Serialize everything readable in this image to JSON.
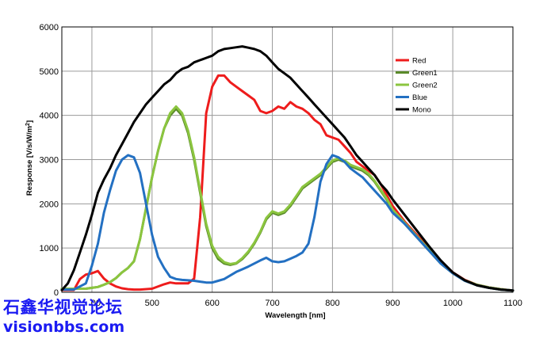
{
  "chart_data": {
    "type": "line",
    "title": "",
    "xlabel": "Wavelength [nm]",
    "ylabel": "Response [V/s/W/m",
    "ylabel_superscript": "2",
    "ylabel_close": "]",
    "xlim": [
      350,
      1100
    ],
    "ylim": [
      0,
      6000
    ],
    "x_ticks": [
      500,
      600,
      700,
      800,
      900,
      1000,
      1100
    ],
    "x_tick_labels": [
      "500",
      "600",
      "700",
      "800",
      "900",
      "1000",
      "1100"
    ],
    "x_tick_labels_partial": [
      {
        "x": 400,
        "text": "00"
      }
    ],
    "y_ticks": [
      0,
      1000,
      2000,
      3000,
      4000,
      5000,
      6000
    ],
    "y_tick_labels": [
      "0",
      "1000",
      "2000",
      "3000",
      "4000",
      "5000",
      "6000"
    ],
    "grid": true,
    "legend_position": "top-right",
    "series": [
      {
        "name": "Red",
        "color": "#ee1c1c",
        "x": [
          350,
          370,
          380,
          390,
          400,
          410,
          420,
          430,
          440,
          450,
          460,
          470,
          480,
          500,
          520,
          530,
          540,
          550,
          560,
          570,
          575,
          580,
          590,
          600,
          610,
          620,
          630,
          640,
          650,
          660,
          670,
          680,
          690,
          700,
          710,
          720,
          730,
          740,
          750,
          760,
          770,
          780,
          790,
          800,
          810,
          820,
          830,
          840,
          850,
          860,
          870,
          880,
          890,
          900,
          920,
          940,
          960,
          980,
          1000,
          1020,
          1040,
          1060,
          1080,
          1100
        ],
        "y": [
          50,
          50,
          300,
          400,
          430,
          480,
          310,
          200,
          130,
          90,
          70,
          60,
          60,
          80,
          180,
          220,
          200,
          200,
          200,
          310,
          1000,
          1700,
          4050,
          4650,
          4900,
          4900,
          4750,
          4650,
          4550,
          4450,
          4350,
          4100,
          4050,
          4100,
          4200,
          4150,
          4300,
          4200,
          4150,
          4050,
          3900,
          3800,
          3550,
          3500,
          3450,
          3300,
          3150,
          2950,
          2850,
          2750,
          2650,
          2450,
          2200,
          1950,
          1600,
          1300,
          1000,
          700,
          450,
          280,
          170,
          110,
          70,
          40
        ]
      },
      {
        "name": "Green1",
        "color": "#5a8a2a",
        "x": [
          350,
          370,
          390,
          400,
          410,
          420,
          430,
          440,
          450,
          460,
          470,
          480,
          490,
          500,
          510,
          520,
          530,
          540,
          550,
          560,
          570,
          580,
          590,
          600,
          610,
          620,
          630,
          640,
          650,
          660,
          670,
          680,
          690,
          700,
          710,
          720,
          730,
          740,
          750,
          760,
          770,
          780,
          790,
          800,
          810,
          820,
          830,
          840,
          850,
          860,
          870,
          880,
          890,
          900,
          920,
          940,
          960,
          980,
          1000,
          1020,
          1040,
          1060,
          1080,
          1100
        ],
        "y": [
          80,
          80,
          80,
          100,
          120,
          170,
          230,
          320,
          450,
          550,
          700,
          1200,
          1900,
          2600,
          3200,
          3700,
          4000,
          4150,
          4000,
          3600,
          3000,
          2250,
          1500,
          1000,
          750,
          650,
          620,
          650,
          750,
          900,
          1100,
          1350,
          1650,
          1800,
          1750,
          1800,
          1950,
          2150,
          2350,
          2450,
          2550,
          2650,
          2800,
          2950,
          3000,
          2950,
          2850,
          2800,
          2750,
          2650,
          2500,
          2300,
          2100,
          1850,
          1550,
          1250,
          950,
          650,
          430,
          260,
          160,
          100,
          60,
          40
        ]
      },
      {
        "name": "Green2",
        "color": "#8bc53f",
        "x": [
          350,
          370,
          390,
          400,
          410,
          420,
          430,
          440,
          450,
          460,
          470,
          480,
          490,
          500,
          510,
          520,
          530,
          540,
          550,
          560,
          570,
          580,
          590,
          600,
          610,
          620,
          630,
          640,
          650,
          660,
          670,
          680,
          690,
          700,
          710,
          720,
          730,
          740,
          750,
          760,
          770,
          780,
          790,
          800,
          810,
          820,
          830,
          840,
          850,
          860,
          870,
          880,
          890,
          900,
          920,
          940,
          960,
          980,
          1000,
          1020,
          1040,
          1060,
          1080,
          1100
        ],
        "y": [
          80,
          80,
          80,
          100,
          120,
          170,
          230,
          320,
          450,
          550,
          700,
          1200,
          1900,
          2600,
          3200,
          3700,
          4050,
          4200,
          4050,
          3650,
          3050,
          2300,
          1550,
          1050,
          800,
          680,
          640,
          660,
          770,
          920,
          1120,
          1370,
          1680,
          1830,
          1780,
          1830,
          1980,
          2180,
          2380,
          2480,
          2580,
          2680,
          2830,
          2980,
          3030,
          2980,
          2880,
          2830,
          2780,
          2680,
          2520,
          2320,
          2120,
          1870,
          1570,
          1270,
          970,
          670,
          440,
          270,
          170,
          110,
          70,
          40
        ]
      },
      {
        "name": "Blue",
        "color": "#2370c2",
        "x": [
          350,
          370,
          390,
          400,
          410,
          420,
          430,
          440,
          450,
          460,
          470,
          480,
          490,
          500,
          510,
          520,
          530,
          540,
          550,
          560,
          570,
          580,
          590,
          600,
          610,
          620,
          630,
          640,
          650,
          660,
          670,
          680,
          690,
          700,
          710,
          720,
          730,
          740,
          750,
          760,
          770,
          780,
          790,
          800,
          810,
          820,
          830,
          840,
          850,
          860,
          870,
          880,
          890,
          900,
          920,
          940,
          960,
          980,
          1000,
          1020,
          1040,
          1060,
          1080,
          1100
        ],
        "y": [
          60,
          60,
          200,
          600,
          1100,
          1800,
          2300,
          2750,
          3000,
          3100,
          3050,
          2700,
          2000,
          1300,
          800,
          550,
          350,
          300,
          280,
          270,
          260,
          240,
          220,
          220,
          260,
          300,
          380,
          460,
          520,
          580,
          650,
          720,
          780,
          700,
          680,
          700,
          760,
          820,
          900,
          1100,
          1700,
          2500,
          2900,
          3100,
          3050,
          2950,
          2800,
          2700,
          2600,
          2450,
          2300,
          2150,
          2000,
          1800,
          1550,
          1250,
          950,
          650,
          430,
          260,
          160,
          100,
          60,
          40
        ]
      },
      {
        "name": "Mono",
        "color": "#000000",
        "x": [
          350,
          360,
          370,
          380,
          390,
          400,
          410,
          420,
          430,
          440,
          450,
          460,
          470,
          480,
          490,
          500,
          510,
          520,
          530,
          540,
          550,
          560,
          570,
          580,
          590,
          600,
          610,
          620,
          630,
          640,
          650,
          660,
          670,
          680,
          690,
          700,
          710,
          720,
          730,
          740,
          750,
          760,
          770,
          780,
          790,
          800,
          810,
          820,
          830,
          840,
          850,
          860,
          870,
          880,
          890,
          900,
          920,
          940,
          960,
          980,
          1000,
          1020,
          1040,
          1060,
          1080,
          1100
        ],
        "y": [
          50,
          200,
          500,
          900,
          1300,
          1750,
          2250,
          2550,
          2800,
          3100,
          3350,
          3600,
          3850,
          4050,
          4250,
          4400,
          4550,
          4700,
          4800,
          4950,
          5050,
          5100,
          5200,
          5250,
          5300,
          5350,
          5450,
          5500,
          5520,
          5540,
          5560,
          5530,
          5500,
          5450,
          5350,
          5200,
          5050,
          4950,
          4850,
          4700,
          4550,
          4400,
          4250,
          4100,
          3950,
          3800,
          3650,
          3500,
          3300,
          3100,
          2950,
          2800,
          2650,
          2450,
          2300,
          2100,
          1750,
          1400,
          1050,
          720,
          450,
          270,
          160,
          100,
          60,
          40
        ]
      }
    ]
  },
  "watermark": {
    "line1": "石鑫华视觉论坛",
    "line2": "visionbbs.com"
  }
}
